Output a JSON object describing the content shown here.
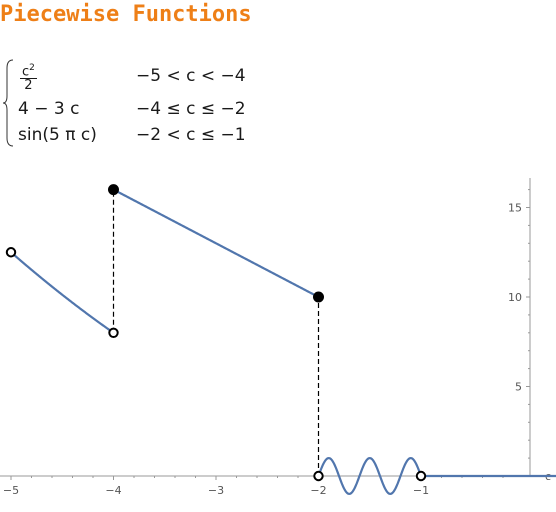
{
  "title": "Piecewise Functions",
  "formula": {
    "cases": [
      {
        "num": "c",
        "num_exp": "2",
        "den": "2",
        "condition": "−5 < c < −4"
      },
      {
        "expr": "4 − 3 c",
        "condition": "−4 ≤ c ≤ −2"
      },
      {
        "expr": "sin(5 π c)",
        "condition": "−2 < c ≤ −1"
      }
    ]
  },
  "chart_data": {
    "type": "line",
    "xlabel": "c",
    "ylabel": "",
    "xlim": [
      -5.1,
      1.1
    ],
    "ylim": [
      -2,
      17
    ],
    "xticks": [
      -5,
      -4,
      -3,
      -2,
      -1
    ],
    "xtick_labels": [
      "−5",
      "−4",
      "−3",
      "−2",
      "−1"
    ],
    "yticks": [
      5,
      10,
      15
    ],
    "ytick_labels": [
      "5",
      "10",
      "15"
    ],
    "series": [
      {
        "expression": "c^2/2",
        "x_range": [
          -5,
          -4
        ],
        "endpoints": [
          [
            -5,
            12.5
          ],
          [
            -4,
            8
          ]
        ]
      },
      {
        "expression": "4 - 3c",
        "x_range": [
          -4,
          -2
        ],
        "endpoints": [
          [
            -4,
            16
          ],
          [
            -2,
            10
          ]
        ]
      },
      {
        "expression": "sin(5 pi c)",
        "x_range": [
          -2,
          -1
        ],
        "endpoints": [
          [
            -2,
            0
          ],
          [
            -1,
            0
          ]
        ]
      },
      {
        "expression": "0",
        "x_range": [
          -1,
          1
        ],
        "endpoints": [
          [
            -1,
            0
          ],
          [
            1,
            0
          ]
        ]
      }
    ],
    "open_points": [
      [
        -5,
        12.5
      ],
      [
        -4,
        8
      ],
      [
        -2,
        0
      ],
      [
        -1,
        0
      ]
    ],
    "closed_points": [
      [
        -4,
        16
      ],
      [
        -2,
        10
      ]
    ],
    "jump_lines": [
      [
        -4,
        8,
        16
      ],
      [
        -2,
        0,
        10
      ]
    ],
    "colors": {
      "curve": "#5176ad",
      "axis": "#999999",
      "title": "#ee7f17"
    }
  }
}
